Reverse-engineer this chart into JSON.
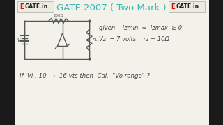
{
  "bg_color": "#d8d8d0",
  "inner_bg": "#f2f2ea",
  "title": "GATE 2007 ( Two Mark )",
  "title_color": "#3ab8b8",
  "title_fontsize": 9.5,
  "left_bar_color": "#1a1a1a",
  "left_bar_width": 22,
  "egate_box_color": "#e8e8de",
  "egate_box_border": "#cccccc",
  "circuit_color": "#555555",
  "resistor_label": "200Ω",
  "given_line1": "given   Izmin  ≈  Izmax ≥ 0",
  "given_line2": "Vz  = 7 volts    rz = 10Ω",
  "question": "If Vi : 10 → 16 vts then Cal. \"Vo range\" ?",
  "text_color": "#444444",
  "text_fontsize": 6.0,
  "q_fontsize": 6.2
}
